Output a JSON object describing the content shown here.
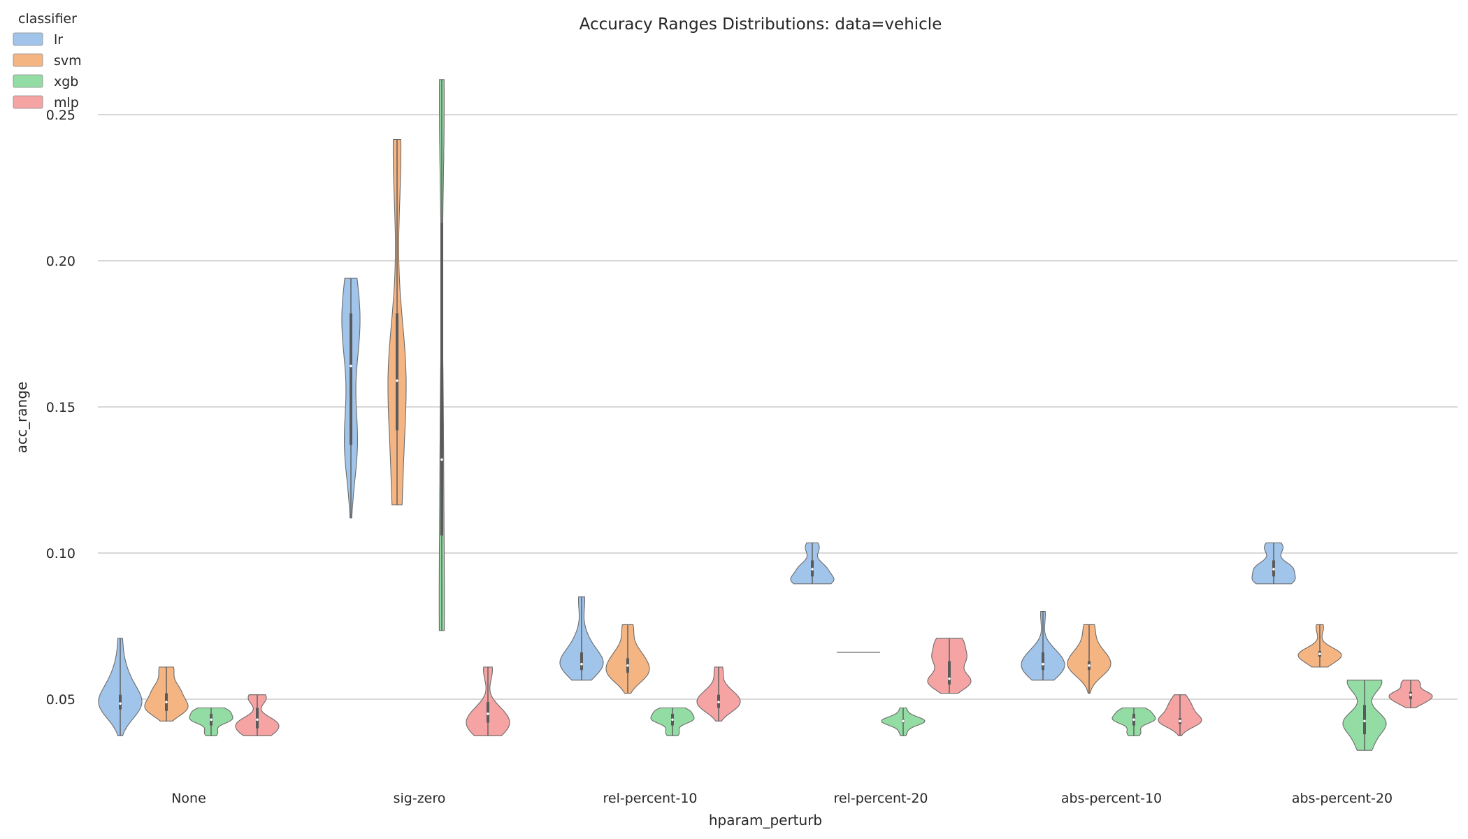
{
  "chart_data": {
    "type": "violin",
    "title": "Accuracy Ranges Distributions: data=vehicle",
    "xlabel": "hparam_perturb",
    "ylabel": "acc_range",
    "ylim": [
      0.017,
      0.29
    ],
    "yticks": [
      0.05,
      0.1,
      0.15,
      0.2,
      0.25
    ],
    "ytick_labels": [
      "0.05",
      "0.10",
      "0.15",
      "0.20",
      "0.25"
    ],
    "grid": "horizontal",
    "legend": {
      "title": "classifier",
      "placement": "top-left"
    },
    "categories": [
      "None",
      "sig-zero",
      "rel-percent-10",
      "rel-percent-20",
      "abs-percent-10",
      "abs-percent-20"
    ],
    "series": [
      {
        "name": "lr",
        "color": "#a1c4ea",
        "violins": [
          {
            "min": 0.0375,
            "max": 0.0708,
            "median": 0.0485,
            "q1": 0.0465,
            "q3": 0.0515,
            "modes": [
              [
                0.0485,
                1.0
              ],
              [
                0.058,
                0.3
              ],
              [
                0.07,
                0.1
              ]
            ]
          },
          {
            "min": 0.112,
            "max": 0.194,
            "median": 0.164,
            "q1": 0.137,
            "q3": 0.182,
            "modes": [
              [
                0.138,
                0.8
              ],
              [
                0.175,
                0.8
              ],
              [
                0.19,
                0.5
              ]
            ]
          },
          {
            "min": 0.0565,
            "max": 0.085,
            "median": 0.062,
            "q1": 0.06,
            "q3": 0.066,
            "modes": [
              [
                0.062,
                1.0
              ],
              [
                0.07,
                0.25
              ],
              [
                0.084,
                0.15
              ]
            ]
          },
          {
            "min": 0.0895,
            "max": 0.1035,
            "median": 0.0945,
            "q1": 0.092,
            "q3": 0.0975,
            "modes": [
              [
                0.0905,
                1.0
              ],
              [
                0.095,
                0.6
              ],
              [
                0.102,
                0.35
              ]
            ]
          },
          {
            "min": 0.0565,
            "max": 0.08,
            "median": 0.062,
            "q1": 0.06,
            "q3": 0.066,
            "modes": [
              [
                0.06,
                1.0
              ],
              [
                0.065,
                0.7
              ],
              [
                0.079,
                0.15
              ]
            ]
          },
          {
            "min": 0.0895,
            "max": 0.1035,
            "median": 0.0945,
            "q1": 0.092,
            "q3": 0.0975,
            "modes": [
              [
                0.0905,
                1.0
              ],
              [
                0.095,
                0.9
              ],
              [
                0.102,
                0.5
              ]
            ]
          }
        ]
      },
      {
        "name": "svm",
        "color": "#f5b583",
        "violins": [
          {
            "min": 0.0425,
            "max": 0.061,
            "median": 0.049,
            "q1": 0.046,
            "q3": 0.052,
            "modes": [
              [
                0.047,
                1.0
              ],
              [
                0.053,
                0.6
              ],
              [
                0.0605,
                0.35
              ]
            ]
          },
          {
            "min": 0.1165,
            "max": 0.2415,
            "median": 0.159,
            "q1": 0.142,
            "q3": 0.182,
            "modes": [
              [
                0.119,
                0.5
              ],
              [
                0.16,
                1.0
              ],
              [
                0.238,
                0.45
              ]
            ]
          },
          {
            "min": 0.052,
            "max": 0.0755,
            "median": 0.0615,
            "q1": 0.059,
            "q3": 0.064,
            "modes": [
              [
                0.059,
                1.0
              ],
              [
                0.065,
                0.6
              ],
              [
                0.0745,
                0.3
              ]
            ]
          },
          {
            "min": 0.066,
            "max": 0.066,
            "median": 0.066,
            "q1": 0.066,
            "q3": 0.066,
            "flat": true
          },
          {
            "min": 0.052,
            "max": 0.0755,
            "median": 0.0615,
            "q1": 0.06,
            "q3": 0.063,
            "modes": [
              [
                0.061,
                1.0
              ],
              [
                0.066,
                0.5
              ],
              [
                0.0745,
                0.3
              ]
            ]
          },
          {
            "min": 0.061,
            "max": 0.0755,
            "median": 0.0655,
            "q1": 0.0645,
            "q3": 0.0665,
            "modes": [
              [
                0.0655,
                1.0
              ],
              [
                0.0625,
                0.35
              ],
              [
                0.0745,
                0.2
              ]
            ]
          }
        ]
      },
      {
        "name": "xgb",
        "color": "#93dca3",
        "violins": [
          {
            "min": 0.0375,
            "max": 0.047,
            "median": 0.043,
            "q1": 0.041,
            "q3": 0.045,
            "modes": [
              [
                0.043,
                1.0
              ],
              [
                0.046,
                0.85
              ],
              [
                0.0385,
                0.35
              ]
            ]
          },
          {
            "min": 0.0735,
            "max": 0.262,
            "median": 0.132,
            "q1": 0.106,
            "q3": 0.213,
            "modes": [
              [
                0.078,
                0.2
              ],
              [
                0.14,
                0.12
              ],
              [
                0.255,
                0.2
              ]
            ]
          },
          {
            "min": 0.0375,
            "max": 0.047,
            "median": 0.043,
            "q1": 0.041,
            "q3": 0.045,
            "modes": [
              [
                0.043,
                1.0
              ],
              [
                0.046,
                0.8
              ],
              [
                0.0385,
                0.35
              ]
            ]
          },
          {
            "min": 0.0375,
            "max": 0.047,
            "median": 0.0425,
            "q1": 0.042,
            "q3": 0.043,
            "modes": [
              [
                0.0425,
                1.0
              ],
              [
                0.0465,
                0.15
              ],
              [
                0.0385,
                0.15
              ]
            ]
          },
          {
            "min": 0.0375,
            "max": 0.047,
            "median": 0.043,
            "q1": 0.041,
            "q3": 0.045,
            "modes": [
              [
                0.043,
                1.0
              ],
              [
                0.046,
                0.7
              ],
              [
                0.0385,
                0.35
              ]
            ]
          },
          {
            "min": 0.0325,
            "max": 0.0565,
            "median": 0.0425,
            "q1": 0.038,
            "q3": 0.048,
            "modes": [
              [
                0.042,
                0.6
              ],
              [
                0.056,
                0.5
              ],
              [
                0.034,
                0.2
              ]
            ]
          }
        ]
      },
      {
        "name": "mlp",
        "color": "#f5a3a3",
        "violins": [
          {
            "min": 0.0375,
            "max": 0.0515,
            "median": 0.043,
            "q1": 0.04,
            "q3": 0.047,
            "modes": [
              [
                0.042,
                0.9
              ],
              [
                0.0385,
                0.7
              ],
              [
                0.0505,
                0.5
              ]
            ]
          },
          {
            "min": 0.0375,
            "max": 0.061,
            "median": 0.045,
            "q1": 0.042,
            "q3": 0.049,
            "modes": [
              [
                0.04,
                1.0
              ],
              [
                0.045,
                0.8
              ],
              [
                0.06,
                0.3
              ]
            ]
          },
          {
            "min": 0.0425,
            "max": 0.061,
            "median": 0.049,
            "q1": 0.047,
            "q3": 0.0515,
            "modes": [
              [
                0.048,
                1.0
              ],
              [
                0.052,
                0.6
              ],
              [
                0.06,
                0.25
              ]
            ]
          },
          {
            "min": 0.052,
            "max": 0.0708,
            "median": 0.057,
            "q1": 0.055,
            "q3": 0.063,
            "modes": [
              [
                0.056,
                0.7
              ],
              [
                0.064,
                0.5
              ],
              [
                0.07,
                0.4
              ]
            ]
          },
          {
            "min": 0.0375,
            "max": 0.0515,
            "median": 0.0425,
            "q1": 0.0415,
            "q3": 0.0435,
            "modes": [
              [
                0.0425,
                1.0
              ],
              [
                0.047,
                0.45
              ],
              [
                0.0505,
                0.25
              ]
            ]
          },
          {
            "min": 0.047,
            "max": 0.0565,
            "median": 0.0515,
            "q1": 0.05,
            "q3": 0.0525,
            "modes": [
              [
                0.0515,
                1.0
              ],
              [
                0.049,
                0.6
              ],
              [
                0.0555,
                0.5
              ]
            ]
          }
        ]
      }
    ]
  }
}
